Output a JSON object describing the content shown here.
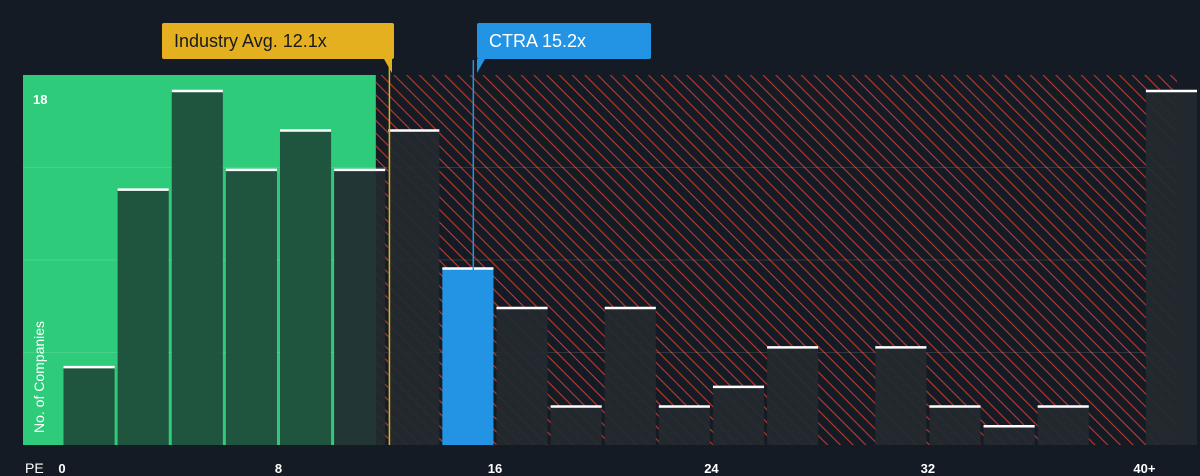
{
  "chart_data": {
    "type": "bar",
    "x_label": "PE",
    "y_label": "No. of Companies",
    "y_max_label": "18",
    "ylim": [
      0,
      18
    ],
    "x_ticks": [
      "0",
      "8",
      "16",
      "24",
      "32",
      "40+"
    ],
    "x_tick_values": [
      0,
      8,
      16,
      24,
      32,
      40
    ],
    "bin_width": 2,
    "bins": [
      {
        "x_start": 0,
        "value": 4
      },
      {
        "x_start": 2,
        "value": 13
      },
      {
        "x_start": 4,
        "value": 18
      },
      {
        "x_start": 6,
        "value": 14
      },
      {
        "x_start": 8,
        "value": 16
      },
      {
        "x_start": 10,
        "value": 14
      },
      {
        "x_start": 12,
        "value": 16
      },
      {
        "x_start": 14,
        "value": 9,
        "highlight": true
      },
      {
        "x_start": 16,
        "value": 7
      },
      {
        "x_start": 18,
        "value": 2
      },
      {
        "x_start": 20,
        "value": 7
      },
      {
        "x_start": 22,
        "value": 2
      },
      {
        "x_start": 24,
        "value": 3
      },
      {
        "x_start": 26,
        "value": 5
      },
      {
        "x_start": 28,
        "value": 0
      },
      {
        "x_start": 30,
        "value": 5
      },
      {
        "x_start": 32,
        "value": 2
      },
      {
        "x_start": 34,
        "value": 1
      },
      {
        "x_start": 36,
        "value": 2
      },
      {
        "x_start": 38,
        "value": 0
      },
      {
        "x_start": 40,
        "value": 18
      }
    ],
    "fair_range_max": 11.6,
    "industry_avg": 12.1,
    "company_value": 15.2,
    "colors": {
      "background": "#151b24",
      "fair_zone": "#2ecc7a",
      "bar_in_fair": "#1e4a3a",
      "bar_hatched": "#232930",
      "hatch": "#c0392b",
      "highlight": "#2394e3",
      "industry": "#e5b020",
      "cap": "#ffffff"
    }
  },
  "callouts": {
    "industry": "Industry Avg. 12.1x",
    "company": "CTRA 15.2x"
  }
}
